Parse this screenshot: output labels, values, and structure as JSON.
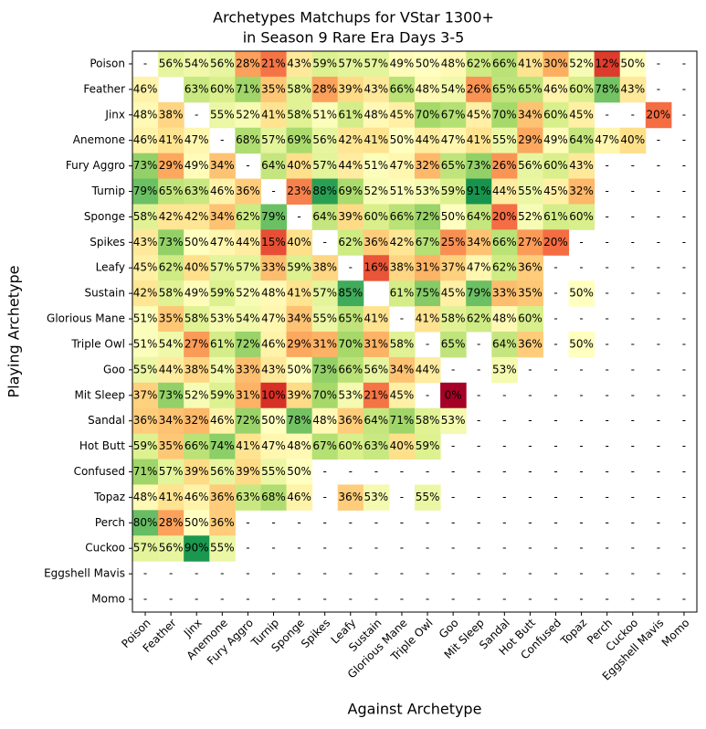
{
  "chart_data": {
    "type": "heatmap",
    "title": [
      "Archetypes Matchups for VStar 1300+",
      "in Season 9 Rare Era Days 3-5"
    ],
    "x_label": "Against Archetype",
    "y_label": "Playing Archetype",
    "x_categories": [
      "Poison",
      "Feather",
      "Jinx",
      "Anemone",
      "Fury Aggro",
      "Turnip",
      "Sponge",
      "Spikes",
      "Leafy",
      "Sustain",
      "Glorious Mane",
      "Triple Owl",
      "Goo",
      "Mit Sleep",
      "Sandal",
      "Hot Butt",
      "Confused",
      "Topaz",
      "Perch",
      "Cuckoo",
      "Eggshell Mavis",
      "Momo"
    ],
    "y_categories": [
      "Poison",
      "Feather",
      "Jinx",
      "Anemone",
      "Fury Aggro",
      "Turnip",
      "Sponge",
      "Spikes",
      "Leafy",
      "Sustain",
      "Glorious Mane",
      "Triple Owl",
      "Goo",
      "Mit Sleep",
      "Sandal",
      "Hot Butt",
      "Confused",
      "Topaz",
      "Perch",
      "Cuckoo",
      "Eggshell Mavis",
      "Momo"
    ],
    "vlim": [
      0,
      100
    ],
    "colormap": [
      "#a50026",
      "#d73027",
      "#f46d43",
      "#fdae61",
      "#fee08b",
      "#ffffbf",
      "#d9ef8b",
      "#a6d96a",
      "#66bd63",
      "#1a9850",
      "#006837"
    ],
    "values": [
      [
        null,
        56,
        54,
        56,
        28,
        21,
        43,
        59,
        57,
        57,
        49,
        50,
        48,
        62,
        66,
        41,
        30,
        52,
        12,
        50,
        null,
        null
      ],
      [
        46,
        null,
        63,
        60,
        71,
        35,
        58,
        28,
        39,
        43,
        66,
        48,
        54,
        26,
        65,
        65,
        46,
        60,
        78,
        43,
        null,
        null
      ],
      [
        48,
        38,
        null,
        55,
        52,
        41,
        58,
        51,
        61,
        48,
        45,
        70,
        67,
        45,
        70,
        34,
        60,
        45,
        null,
        null,
        20,
        null
      ],
      [
        46,
        41,
        47,
        null,
        68,
        57,
        69,
        56,
        42,
        41,
        50,
        44,
        47,
        41,
        55,
        29,
        49,
        64,
        47,
        40,
        null,
        null
      ],
      [
        73,
        29,
        49,
        34,
        null,
        64,
        40,
        57,
        44,
        51,
        47,
        32,
        65,
        73,
        26,
        56,
        60,
        43,
        null,
        null,
        null,
        null
      ],
      [
        79,
        65,
        63,
        46,
        36,
        null,
        23,
        88,
        69,
        52,
        51,
        53,
        59,
        91,
        44,
        55,
        45,
        32,
        null,
        null,
        null,
        null
      ],
      [
        58,
        42,
        42,
        34,
        62,
        79,
        null,
        64,
        39,
        60,
        66,
        72,
        50,
        64,
        20,
        52,
        61,
        60,
        null,
        null,
        null,
        null
      ],
      [
        43,
        73,
        50,
        47,
        44,
        15,
        40,
        null,
        62,
        36,
        42,
        67,
        25,
        34,
        66,
        27,
        20,
        null,
        null,
        null,
        null,
        null
      ],
      [
        45,
        62,
        40,
        57,
        57,
        33,
        59,
        38,
        null,
        16,
        38,
        31,
        37,
        47,
        62,
        36,
        null,
        null,
        null,
        null,
        null,
        null
      ],
      [
        42,
        58,
        49,
        59,
        52,
        48,
        41,
        57,
        85,
        null,
        61,
        75,
        45,
        79,
        33,
        35,
        null,
        50,
        null,
        null,
        null,
        null
      ],
      [
        51,
        35,
        58,
        53,
        54,
        47,
        34,
        55,
        65,
        41,
        null,
        41,
        58,
        62,
        48,
        60,
        null,
        null,
        null,
        null,
        null,
        null
      ],
      [
        51,
        54,
        27,
        61,
        72,
        46,
        29,
        31,
        70,
        31,
        58,
        null,
        65,
        null,
        64,
        36,
        null,
        50,
        null,
        null,
        null,
        null
      ],
      [
        55,
        44,
        38,
        54,
        33,
        43,
        50,
        73,
        66,
        56,
        34,
        44,
        null,
        null,
        53,
        null,
        null,
        null,
        null,
        null,
        null,
        null
      ],
      [
        37,
        73,
        52,
        59,
        31,
        10,
        39,
        70,
        53,
        21,
        45,
        null,
        0,
        null,
        null,
        null,
        null,
        null,
        null,
        null,
        null,
        null
      ],
      [
        36,
        34,
        32,
        46,
        72,
        50,
        78,
        48,
        36,
        64,
        71,
        58,
        53,
        null,
        null,
        null,
        null,
        null,
        null,
        null,
        null,
        null
      ],
      [
        59,
        35,
        66,
        74,
        41,
        47,
        48,
        67,
        60,
        63,
        40,
        59,
        null,
        null,
        null,
        null,
        null,
        null,
        null,
        null,
        null,
        null
      ],
      [
        71,
        57,
        39,
        56,
        39,
        55,
        50,
        null,
        null,
        null,
        null,
        null,
        null,
        null,
        null,
        null,
        null,
        null,
        null,
        null,
        null,
        null
      ],
      [
        48,
        41,
        46,
        36,
        63,
        68,
        46,
        null,
        36,
        53,
        null,
        55,
        null,
        null,
        null,
        null,
        null,
        null,
        null,
        null,
        null,
        null
      ],
      [
        80,
        28,
        50,
        36,
        null,
        null,
        null,
        null,
        null,
        null,
        null,
        null,
        null,
        null,
        null,
        null,
        null,
        null,
        null,
        null,
        null,
        null
      ],
      [
        57,
        56,
        90,
        55,
        null,
        null,
        null,
        null,
        null,
        null,
        null,
        null,
        null,
        null,
        null,
        null,
        null,
        null,
        null,
        null,
        null,
        null
      ],
      [
        null,
        null,
        null,
        null,
        null,
        null,
        null,
        null,
        null,
        null,
        null,
        null,
        null,
        null,
        null,
        null,
        null,
        null,
        null,
        null,
        null,
        null
      ],
      [
        null,
        null,
        null,
        null,
        null,
        null,
        null,
        null,
        null,
        null,
        null,
        null,
        null,
        null,
        null,
        null,
        null,
        null,
        null,
        null,
        null,
        null
      ]
    ],
    "value_labels": [
      [
        "-",
        "56%",
        "54%",
        "56%",
        "28%",
        "21%",
        "43%",
        "59%",
        "57%",
        "57%",
        "49%",
        "50%",
        "48%",
        "62%",
        "66%",
        "41%",
        "30%",
        "52%",
        "12%",
        "50%",
        "-",
        "-"
      ],
      [
        "46%",
        null,
        "63%",
        "60%",
        "71%",
        "35%",
        "58%",
        "28%",
        "39%",
        "43%",
        "66%",
        "48%",
        "54%",
        "26%",
        "65%",
        "65%",
        "46%",
        "60%",
        "78%",
        "43%",
        "-",
        "-"
      ],
      [
        "48%",
        "38%",
        "-",
        "55%",
        "52%",
        "41%",
        "58%",
        "51%",
        "61%",
        "48%",
        "45%",
        "70%",
        "67%",
        "45%",
        "70%",
        "34%",
        "60%",
        "45%",
        "-",
        "-",
        "20%",
        "-"
      ],
      [
        "46%",
        "41%",
        "47%",
        "-",
        "68%",
        "57%",
        "69%",
        "56%",
        "42%",
        "41%",
        "50%",
        "44%",
        "47%",
        "41%",
        "55%",
        "29%",
        "49%",
        "64%",
        "47%",
        "40%",
        "-",
        "-"
      ],
      [
        "73%",
        "29%",
        "49%",
        "34%",
        "-",
        "64%",
        "40%",
        "57%",
        "44%",
        "51%",
        "47%",
        "32%",
        "65%",
        "73%",
        "26%",
        "56%",
        "60%",
        "43%",
        "-",
        "-",
        "-",
        "-"
      ],
      [
        "79%",
        "65%",
        "63%",
        "46%",
        "36%",
        "-",
        "23%",
        "88%",
        "69%",
        "52%",
        "51%",
        "53%",
        "59%",
        "91%",
        "44%",
        "55%",
        "45%",
        "32%",
        "-",
        "-",
        "-",
        "-"
      ],
      [
        "58%",
        "42%",
        "42%",
        "34%",
        "62%",
        "79%",
        "-",
        "64%",
        "39%",
        "60%",
        "66%",
        "72%",
        "50%",
        "64%",
        "20%",
        "52%",
        "61%",
        "60%",
        "-",
        "-",
        "-",
        "-"
      ],
      [
        "43%",
        "73%",
        "50%",
        "47%",
        "44%",
        "15%",
        "40%",
        "-",
        "62%",
        "36%",
        "42%",
        "67%",
        "25%",
        "34%",
        "66%",
        "27%",
        "20%",
        "-",
        "-",
        "-",
        "-",
        "-"
      ],
      [
        "45%",
        "62%",
        "40%",
        "57%",
        "57%",
        "33%",
        "59%",
        "38%",
        "-",
        "16%",
        "38%",
        "31%",
        "37%",
        "47%",
        "62%",
        "36%",
        "-",
        "-",
        "-",
        "-",
        "-",
        "-"
      ],
      [
        "42%",
        "58%",
        "49%",
        "59%",
        "52%",
        "48%",
        "41%",
        "57%",
        "85%",
        null,
        "61%",
        "75%",
        "45%",
        "79%",
        "33%",
        "35%",
        "-",
        "50%",
        "-",
        "-",
        "-",
        "-"
      ],
      [
        "51%",
        "35%",
        "58%",
        "53%",
        "54%",
        "47%",
        "34%",
        "55%",
        "65%",
        "41%",
        "-",
        "41%",
        "58%",
        "62%",
        "48%",
        "60%",
        "-",
        "-",
        "-",
        "-",
        "-",
        "-"
      ],
      [
        "51%",
        "54%",
        "27%",
        "61%",
        "72%",
        "46%",
        "29%",
        "31%",
        "70%",
        "31%",
        "58%",
        "-",
        "65%",
        "-",
        "64%",
        "36%",
        "-",
        "50%",
        "-",
        "-",
        "-",
        "-"
      ],
      [
        "55%",
        "44%",
        "38%",
        "54%",
        "33%",
        "43%",
        "50%",
        "73%",
        "66%",
        "56%",
        "34%",
        "44%",
        "-",
        "-",
        "53%",
        "-",
        "-",
        "-",
        "-",
        "-",
        "-",
        "-"
      ],
      [
        "37%",
        "73%",
        "52%",
        "59%",
        "31%",
        "10%",
        "39%",
        "70%",
        "53%",
        "21%",
        "45%",
        "-",
        "0%",
        "-",
        "-",
        "-",
        "-",
        "-",
        "-",
        "-",
        "-",
        "-"
      ],
      [
        "36%",
        "34%",
        "32%",
        "46%",
        "72%",
        "50%",
        "78%",
        "48%",
        "36%",
        "64%",
        "71%",
        "58%",
        "53%",
        "-",
        "-",
        "-",
        "-",
        "-",
        "-",
        "-",
        "-",
        "-"
      ],
      [
        "59%",
        "35%",
        "66%",
        "74%",
        "41%",
        "47%",
        "48%",
        "67%",
        "60%",
        "63%",
        "40%",
        "59%",
        "-",
        "-",
        "-",
        "-",
        "-",
        "-",
        "-",
        "-",
        "-",
        "-"
      ],
      [
        "71%",
        "57%",
        "39%",
        "56%",
        "39%",
        "55%",
        "50%",
        "-",
        "-",
        "-",
        "-",
        "-",
        "-",
        "-",
        "-",
        "-",
        "-",
        "-",
        "-",
        "-",
        "-",
        "-"
      ],
      [
        "48%",
        "41%",
        "46%",
        "36%",
        "63%",
        "68%",
        "46%",
        "-",
        "36%",
        "53%",
        "-",
        "55%",
        "-",
        "-",
        "-",
        "-",
        "-",
        "-",
        "-",
        "-",
        "-",
        "-"
      ],
      [
        "80%",
        "28%",
        "50%",
        "36%",
        "-",
        "-",
        "-",
        "-",
        "-",
        "-",
        "-",
        "-",
        "-",
        "-",
        "-",
        "-",
        "-",
        "-",
        "-",
        "-",
        "-",
        "-"
      ],
      [
        "57%",
        "56%",
        "90%",
        "55%",
        "-",
        "-",
        "-",
        "-",
        "-",
        "-",
        "-",
        "-",
        "-",
        "-",
        "-",
        "-",
        "-",
        "-",
        "-",
        "-",
        "-",
        "-"
      ],
      [
        "-",
        "-",
        "-",
        "-",
        "-",
        "-",
        "-",
        "-",
        "-",
        "-",
        "-",
        "-",
        "-",
        "-",
        "-",
        "-",
        "-",
        "-",
        "-",
        "-",
        "-",
        "-"
      ],
      [
        "-",
        "-",
        "-",
        "-",
        "-",
        "-",
        "-",
        "-",
        "-",
        "-",
        "-",
        "-",
        "-",
        "-",
        "-",
        "-",
        "-",
        "-",
        "-",
        "-",
        "-",
        "-"
      ]
    ]
  }
}
